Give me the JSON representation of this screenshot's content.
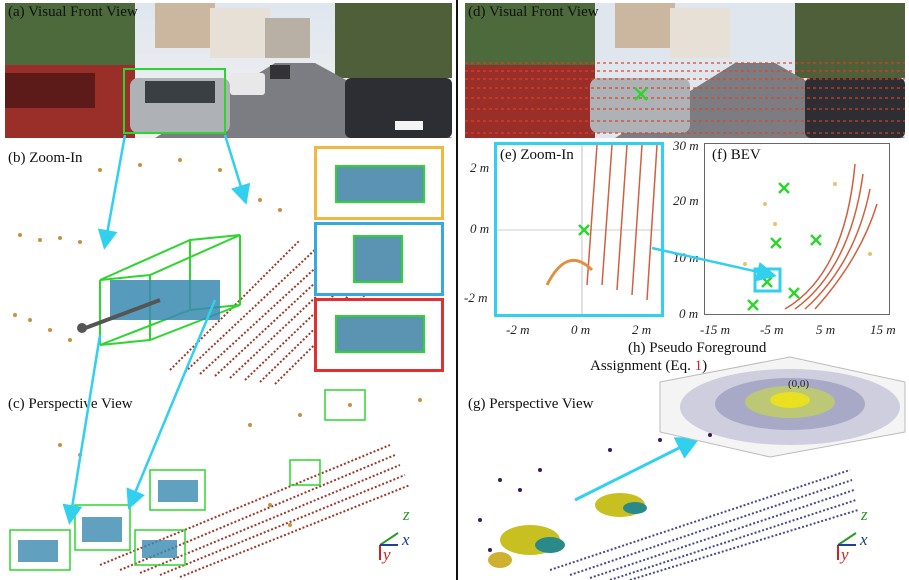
{
  "left": {
    "front_view_label": "(a) Visual Front View",
    "zoom_label": "(b) Zoom-In",
    "perspective_label": "(c) Perspective View",
    "axis": {
      "z": "z",
      "x": "x",
      "y": "y"
    }
  },
  "right": {
    "front_view_label": "(d) Visual Front View",
    "zoom_label": "(e) Zoom-In",
    "bev_label": "(f) BEV",
    "pseudo_label_line1": "(h)  Pseudo Foreground",
    "pseudo_label_line2_pre": "Assignment (Eq. ",
    "pseudo_label_eq": "1",
    "pseudo_label_line2_post": ")",
    "perspective_label": "(g) Perspective View",
    "origin_label": "(0,0)",
    "zoom_ticks": {
      "y_top": "2",
      "y_mid": "0",
      "y_bot": "-2",
      "x_left": "-2",
      "x_mid": "0",
      "x_right": "2",
      "unit": "m"
    },
    "bev_ticks": {
      "y": [
        "30",
        "20",
        "10",
        "0"
      ],
      "x": [
        "-15",
        "-5",
        "5",
        "15"
      ],
      "unit": "m"
    },
    "axis": {
      "z": "z",
      "x": "x",
      "y": "y"
    }
  },
  "colors": {
    "green_box": "#2ed52e",
    "cyan": "#30d0ee",
    "yellow_frame": "#f0b840",
    "blue_frame": "#38a8e0",
    "red_frame": "#e03030"
  }
}
